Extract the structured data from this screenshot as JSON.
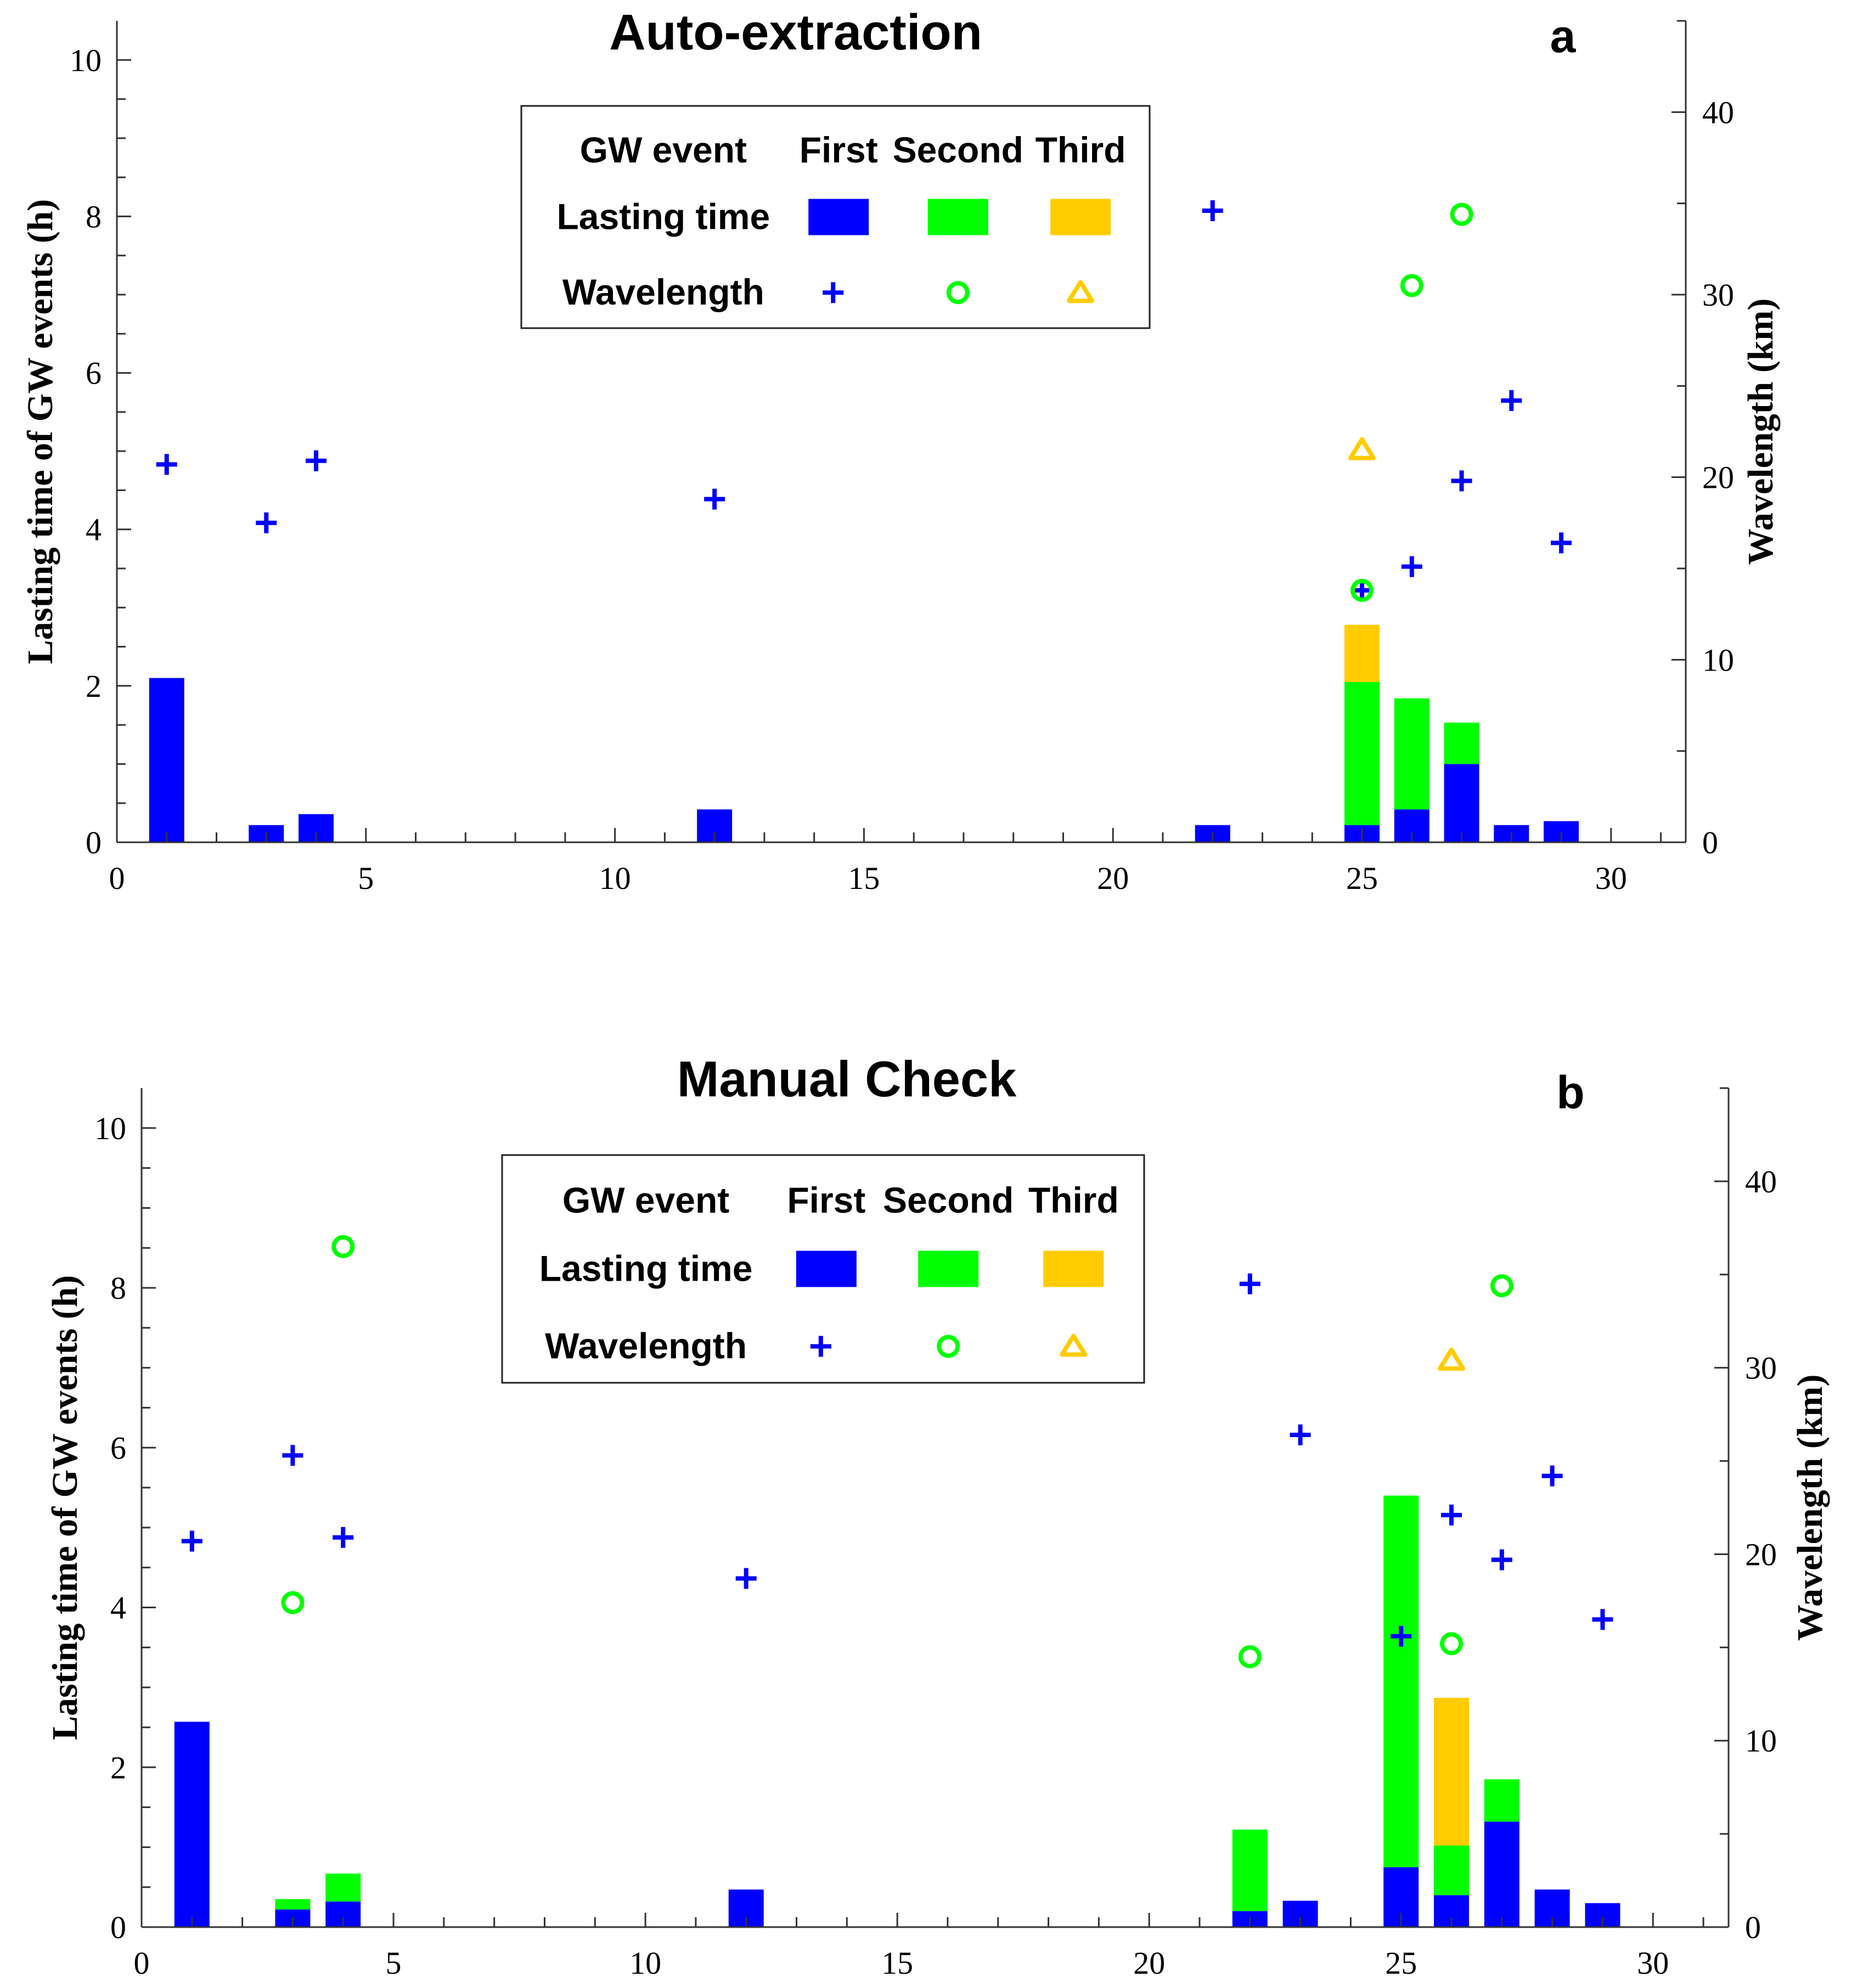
{
  "colors": {
    "first": "#0000ff",
    "second": "#00ff00",
    "third": "#ffcc00"
  },
  "legend": {
    "header": "GW event",
    "col_first": "First",
    "col_second": "Second",
    "col_third": "Third",
    "row_lasting": "Lasting time",
    "row_wavelength": "Wavelength"
  },
  "chart_data": [
    {
      "type": "bar",
      "title": "Auto-extraction",
      "panel_label": "a",
      "xlabel": "",
      "ylabel": "Lasting time of GW events (h)",
      "y2label": "Wavelength (km)",
      "xlim": [
        0,
        31.5
      ],
      "ylim": [
        0,
        10.5
      ],
      "y2lim": [
        0,
        45
      ],
      "xticks": [
        0,
        5,
        10,
        15,
        20,
        25,
        30
      ],
      "yticks": [
        0,
        2,
        4,
        6,
        8,
        10
      ],
      "y2ticks": [
        0,
        10,
        20,
        30,
        40
      ],
      "bars": [
        {
          "day": 1,
          "first": 2.1,
          "second": 0,
          "third": 0
        },
        {
          "day": 3,
          "first": 0.22,
          "second": 0,
          "third": 0
        },
        {
          "day": 4,
          "first": 0.36,
          "second": 0,
          "third": 0
        },
        {
          "day": 12,
          "first": 0.42,
          "second": 0,
          "third": 0
        },
        {
          "day": 22,
          "first": 0.22,
          "second": 0,
          "third": 0
        },
        {
          "day": 25,
          "first": 0.22,
          "second": 1.83,
          "third": 0.73
        },
        {
          "day": 26,
          "first": 0.42,
          "second": 1.42,
          "third": 0
        },
        {
          "day": 27,
          "first": 1.0,
          "second": 0.53,
          "third": 0
        },
        {
          "day": 28,
          "first": 0.22,
          "second": 0,
          "third": 0
        },
        {
          "day": 29,
          "first": 0.27,
          "second": 0,
          "third": 0
        }
      ],
      "wavelength": {
        "first": [
          [
            1,
            20.7
          ],
          [
            3,
            17.5
          ],
          [
            4,
            20.9
          ],
          [
            12,
            18.8
          ],
          [
            22,
            34.6
          ],
          [
            25,
            13.8
          ],
          [
            26,
            15.1
          ],
          [
            27,
            19.8
          ],
          [
            28,
            24.2
          ],
          [
            29,
            16.4
          ]
        ],
        "second": [
          [
            25,
            13.8
          ],
          [
            26,
            30.5
          ],
          [
            27,
            34.4
          ]
        ],
        "third": [
          [
            25,
            21.5
          ]
        ]
      }
    },
    {
      "type": "bar",
      "title": "Manual Check",
      "panel_label": "b",
      "xlabel": "",
      "ylabel": "Lasting time of GW events (h)",
      "y2label": "Wavelength (km)",
      "xlim": [
        0,
        31.5
      ],
      "ylim": [
        0,
        10.5
      ],
      "y2lim": [
        0,
        45
      ],
      "xticks": [
        0,
        5,
        10,
        15,
        20,
        25,
        30
      ],
      "yticks": [
        0,
        2,
        4,
        6,
        8,
        10
      ],
      "y2ticks": [
        0,
        10,
        20,
        30,
        40
      ],
      "bars": [
        {
          "day": 1,
          "first": 2.57,
          "second": 0,
          "third": 0
        },
        {
          "day": 3,
          "first": 0.22,
          "second": 0.13,
          "third": 0
        },
        {
          "day": 4,
          "first": 0.32,
          "second": 0.35,
          "third": 0
        },
        {
          "day": 12,
          "first": 0.47,
          "second": 0,
          "third": 0
        },
        {
          "day": 22,
          "first": 0.2,
          "second": 1.02,
          "third": 0
        },
        {
          "day": 23,
          "first": 0.33,
          "second": 0,
          "third": 0
        },
        {
          "day": 25,
          "first": 0.75,
          "second": 4.65,
          "third": 0
        },
        {
          "day": 26,
          "first": 0.4,
          "second": 0.62,
          "third": 1.85
        },
        {
          "day": 27,
          "first": 1.32,
          "second": 0.53,
          "third": 0
        },
        {
          "day": 28,
          "first": 0.47,
          "second": 0,
          "third": 0
        },
        {
          "day": 29,
          "first": 0.3,
          "second": 0,
          "third": 0
        }
      ],
      "wavelength": {
        "first": [
          [
            1,
            20.7
          ],
          [
            3,
            25.3
          ],
          [
            4,
            20.9
          ],
          [
            12,
            18.7
          ],
          [
            22,
            34.5
          ],
          [
            23,
            26.4
          ],
          [
            25,
            15.6
          ],
          [
            26,
            22.1
          ],
          [
            27,
            19.7
          ],
          [
            28,
            24.2
          ],
          [
            29,
            16.5
          ]
        ],
        "second": [
          [
            3,
            17.4
          ],
          [
            4,
            36.5
          ],
          [
            22,
            14.5
          ],
          [
            26,
            15.2
          ],
          [
            27,
            34.4
          ]
        ],
        "third": [
          [
            26,
            30.4
          ]
        ]
      }
    }
  ]
}
